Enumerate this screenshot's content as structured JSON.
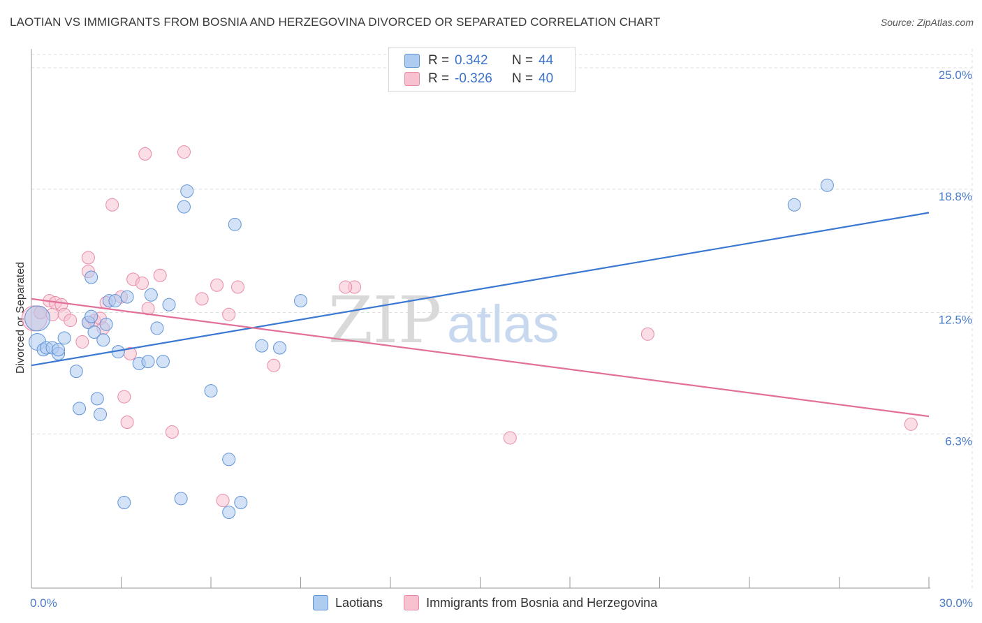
{
  "title": "LAOTIAN VS IMMIGRANTS FROM BOSNIA AND HERZEGOVINA DIVORCED OR SEPARATED CORRELATION CHART",
  "source": "Source: ZipAtlas.com",
  "watermark": {
    "zip": "ZIP",
    "atlas": "atlas"
  },
  "colors": {
    "blue_fill": "#aecbf0",
    "blue_stroke": "#5f93d6",
    "blue_line": "#3a78d2",
    "pink_fill": "#f7c1d0",
    "pink_stroke": "#e88aa6",
    "pink_line": "#e2709a",
    "tick_text": "#4a7cc7",
    "grid": "#dcdcdc"
  },
  "legend": {
    "rows": [
      {
        "r_label": "R =",
        "r_value": "0.342",
        "n_label": "N =",
        "n_value": "44"
      },
      {
        "r_label": "R =",
        "r_value": "-0.326",
        "n_label": "N =",
        "n_value": "40"
      }
    ]
  },
  "chart_data": {
    "type": "scatter",
    "xlabel": "",
    "ylabel": "Divorced or Separated",
    "xlim": [
      0,
      30
    ],
    "ylim": [
      0,
      26
    ],
    "x_tick_labels": [
      "0.0%",
      "30.0%"
    ],
    "y_ticks": [
      6.3,
      12.5,
      18.8,
      25.0
    ],
    "y_tick_labels": [
      "6.3%",
      "12.5%",
      "18.8%",
      "25.0%"
    ],
    "grid": true,
    "legend_position": "bottom",
    "series": [
      {
        "name": "Laotians",
        "color": "blue",
        "trend": [
          [
            0,
            9.8
          ],
          [
            30,
            17.6
          ]
        ],
        "points": [
          [
            0.2,
            12.2
          ],
          [
            0.2,
            11.0
          ],
          [
            0.4,
            10.6
          ],
          [
            0.5,
            10.7
          ],
          [
            0.7,
            10.7
          ],
          [
            0.9,
            10.4
          ],
          [
            0.9,
            10.6
          ],
          [
            1.1,
            11.2
          ],
          [
            1.5,
            9.5
          ],
          [
            1.6,
            7.6
          ],
          [
            1.9,
            12.0
          ],
          [
            2.0,
            12.3
          ],
          [
            2.0,
            14.3
          ],
          [
            2.1,
            11.5
          ],
          [
            2.2,
            8.1
          ],
          [
            2.3,
            7.3
          ],
          [
            2.4,
            11.1
          ],
          [
            2.5,
            11.9
          ],
          [
            2.6,
            13.1
          ],
          [
            2.8,
            13.1
          ],
          [
            2.9,
            10.5
          ],
          [
            3.1,
            2.8
          ],
          [
            3.2,
            13.3
          ],
          [
            3.6,
            9.9
          ],
          [
            3.9,
            10.0
          ],
          [
            4.0,
            13.4
          ],
          [
            4.2,
            11.7
          ],
          [
            4.4,
            10.0
          ],
          [
            4.6,
            12.9
          ],
          [
            5.0,
            3.0
          ],
          [
            5.1,
            17.9
          ],
          [
            5.2,
            18.7
          ],
          [
            6.0,
            8.5
          ],
          [
            6.6,
            5.0
          ],
          [
            6.6,
            2.3
          ],
          [
            6.8,
            17.0
          ],
          [
            7.0,
            2.8
          ],
          [
            7.7,
            10.8
          ],
          [
            8.3,
            10.7
          ],
          [
            9.0,
            13.1
          ],
          [
            25.5,
            18.0
          ],
          [
            26.6,
            19.0
          ]
        ],
        "point_sizes": [
          18,
          12,
          9,
          9,
          9,
          9,
          9,
          9,
          9,
          9,
          9,
          9,
          9,
          9,
          9,
          9,
          9,
          9,
          9,
          9,
          9,
          9,
          9,
          9,
          9,
          9,
          9,
          9,
          9,
          9,
          9,
          9,
          9,
          9,
          9,
          9,
          9,
          9,
          9,
          9,
          9,
          9
        ]
      },
      {
        "name": "Immigrants from Bosnia and Herzegovina",
        "color": "pink",
        "trend": [
          [
            0,
            13.2
          ],
          [
            30,
            7.2
          ]
        ],
        "points": [
          [
            0.1,
            12.2
          ],
          [
            0.3,
            12.5
          ],
          [
            0.6,
            13.1
          ],
          [
            0.7,
            12.4
          ],
          [
            0.8,
            13.0
          ],
          [
            1.0,
            12.9
          ],
          [
            1.1,
            12.4
          ],
          [
            1.3,
            12.1
          ],
          [
            1.7,
            11.0
          ],
          [
            1.9,
            12.0
          ],
          [
            1.9,
            14.6
          ],
          [
            1.9,
            15.3
          ],
          [
            2.1,
            12.1
          ],
          [
            2.3,
            12.2
          ],
          [
            2.4,
            11.7
          ],
          [
            2.5,
            13.0
          ],
          [
            2.7,
            18.0
          ],
          [
            3.0,
            13.3
          ],
          [
            3.1,
            8.2
          ],
          [
            3.2,
            6.9
          ],
          [
            3.3,
            10.4
          ],
          [
            3.4,
            14.2
          ],
          [
            3.7,
            14.0
          ],
          [
            3.8,
            20.6
          ],
          [
            3.9,
            12.7
          ],
          [
            4.3,
            14.4
          ],
          [
            4.7,
            6.4
          ],
          [
            5.1,
            20.7
          ],
          [
            5.7,
            13.2
          ],
          [
            6.2,
            13.9
          ],
          [
            6.4,
            2.9
          ],
          [
            6.6,
            12.4
          ],
          [
            6.9,
            13.8
          ],
          [
            8.1,
            9.8
          ],
          [
            10.8,
            13.8
          ],
          [
            10.5,
            13.8
          ],
          [
            16.0,
            6.1
          ],
          [
            20.6,
            11.4
          ],
          [
            29.4,
            6.8
          ]
        ],
        "point_sizes": [
          18,
          9,
          9,
          9,
          9,
          9,
          9,
          9,
          9,
          9,
          9,
          9,
          9,
          9,
          9,
          9,
          9,
          9,
          9,
          9,
          9,
          9,
          9,
          9,
          9,
          9,
          9,
          9,
          9,
          9,
          9,
          9,
          9,
          9,
          9,
          9,
          9,
          9,
          9
        ]
      }
    ]
  }
}
